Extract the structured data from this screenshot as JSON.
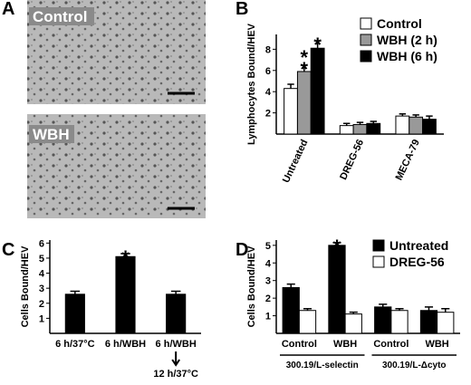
{
  "figure": {
    "panel_a": "A",
    "micrographs": [
      "Control",
      "WBH"
    ]
  },
  "chart_data": [
    {
      "type": "bar",
      "panel": "B",
      "y_label": "Lymphocytes Bound/HEV",
      "categories": [
        "Untreated",
        "DREG-56",
        "MECA-79"
      ],
      "series": [
        {
          "name": "Control",
          "color": "#ffffff",
          "values": [
            4.3,
            0.8,
            1.7
          ],
          "errors": [
            0.4,
            0.2,
            0.2
          ]
        },
        {
          "name": "WBH (2 h)",
          "color": "#999999",
          "values": [
            5.9,
            0.9,
            1.6
          ],
          "errors": [
            0.6,
            0.2,
            0.2
          ]
        },
        {
          "name": "WBH (6 h)",
          "color": "#000000",
          "values": [
            8.1,
            1.0,
            1.4
          ],
          "errors": [
            0.7,
            0.2,
            0.3
          ]
        }
      ],
      "significance": [
        {
          "series": 1,
          "category": 0,
          "label": "**"
        },
        {
          "series": 2,
          "category": 0,
          "label": "*"
        }
      ],
      "ylim": [
        0,
        9.4
      ],
      "yticks": [
        2,
        4,
        6,
        8
      ]
    },
    {
      "type": "bar",
      "panel": "C",
      "y_label": "Cells Bound/HEV",
      "categories": [
        "6 h/37°C",
        "6 h/WBH",
        "6 h/WBH"
      ],
      "subcategories": [
        null,
        null,
        "12 h/37°C"
      ],
      "series": [
        {
          "name": null,
          "color": "#000000",
          "values": [
            2.6,
            5.1,
            2.6
          ],
          "errors": [
            0.2,
            0.2,
            0.2
          ]
        }
      ],
      "significance": [
        {
          "series": 0,
          "category": 1,
          "label": "*"
        }
      ],
      "ylim": [
        0,
        6.2
      ],
      "yticks": [
        1,
        2,
        3,
        4,
        5,
        6
      ]
    },
    {
      "type": "bar",
      "panel": "D",
      "y_label": "Cells Bound/HEV",
      "categories": [
        "Control",
        "WBH",
        "Control",
        "WBH"
      ],
      "groups": [
        {
          "label": "300.19/L-selectin",
          "categories": [
            0,
            1
          ]
        },
        {
          "label": "300.19/L-Δcyto",
          "categories": [
            2,
            3
          ]
        }
      ],
      "series": [
        {
          "name": "Untreated",
          "color": "#000000",
          "values": [
            2.6,
            5.0,
            1.5,
            1.3
          ],
          "errors": [
            0.2,
            0.15,
            0.15,
            0.2
          ]
        },
        {
          "name": "DREG-56",
          "color": "#ffffff",
          "values": [
            1.3,
            1.1,
            1.3,
            1.2
          ],
          "errors": [
            0.1,
            0.1,
            0.1,
            0.2
          ]
        }
      ],
      "significance": [
        {
          "series": 0,
          "category": 1,
          "label": "*"
        }
      ],
      "ylim": [
        0,
        5.3
      ],
      "yticks": [
        1,
        2,
        3,
        4,
        5
      ]
    }
  ]
}
